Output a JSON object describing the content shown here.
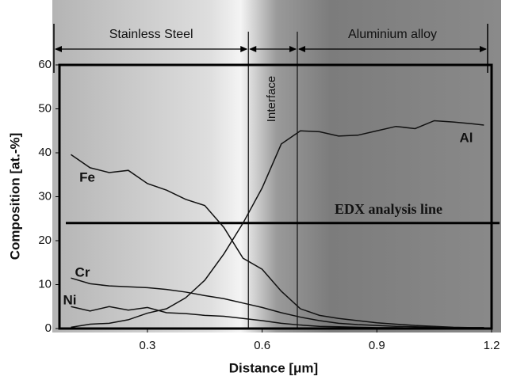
{
  "chart_data": {
    "type": "line",
    "x_label": "Distance [μm]",
    "y_label": "Composition [at.-%]",
    "x": [
      0.1,
      0.15,
      0.2,
      0.25,
      0.3,
      0.35,
      0.4,
      0.45,
      0.5,
      0.55,
      0.6,
      0.65,
      0.7,
      0.75,
      0.8,
      0.85,
      0.9,
      0.95,
      1.0,
      1.05,
      1.1,
      1.15,
      1.18
    ],
    "series": [
      {
        "name": "Fe",
        "color": "#111111",
        "values": [
          39.6,
          36.6,
          35.5,
          36,
          33,
          31.5,
          29.4,
          28,
          23,
          16,
          13.5,
          8.5,
          4.5,
          3,
          2.3,
          1.8,
          1.3,
          1,
          0.7,
          0.5,
          0.3,
          0.2,
          0.2
        ]
      },
      {
        "name": "Al",
        "color": "#111111",
        "values": [
          0.3,
          1,
          1.2,
          2,
          3.5,
          4.5,
          7,
          11,
          17,
          24,
          32,
          42,
          45,
          44.8,
          43.8,
          44,
          45,
          46,
          45.5,
          47.3,
          47,
          46.6,
          46.3
        ]
      },
      {
        "name": "Cr",
        "color": "#111111",
        "values": [
          11.5,
          10.2,
          9.7,
          9.5,
          9.3,
          8.9,
          8.3,
          7.5,
          6.8,
          5.8,
          4.8,
          3.6,
          2.6,
          1.8,
          1.2,
          0.9,
          0.7,
          0.5,
          0.4,
          0.3,
          0.2,
          0.2,
          0.2
        ]
      },
      {
        "name": "Ni",
        "color": "#111111",
        "values": [
          5,
          4,
          5,
          4.2,
          4.8,
          3.6,
          3.4,
          3,
          2.8,
          2.3,
          1.8,
          1.2,
          0.8,
          0.5,
          0.4,
          0.3,
          0.2,
          0.2,
          0.1,
          0.1,
          0.1,
          0.1,
          0.1
        ]
      }
    ],
    "xlim": [
      0.07,
      1.2
    ],
    "ylim": [
      0,
      60
    ],
    "xticks": [
      0.3,
      0.6,
      0.9,
      1.2
    ],
    "yticks": [
      0,
      10,
      20,
      30,
      40,
      50,
      60
    ],
    "interface_lines": [
      0.564,
      0.692
    ],
    "edx_line": {
      "value": 24,
      "label": "EDX analysis line"
    },
    "regions": [
      "Stainless Steel",
      "Aluminium alloy"
    ],
    "interface_label": "Interface"
  }
}
